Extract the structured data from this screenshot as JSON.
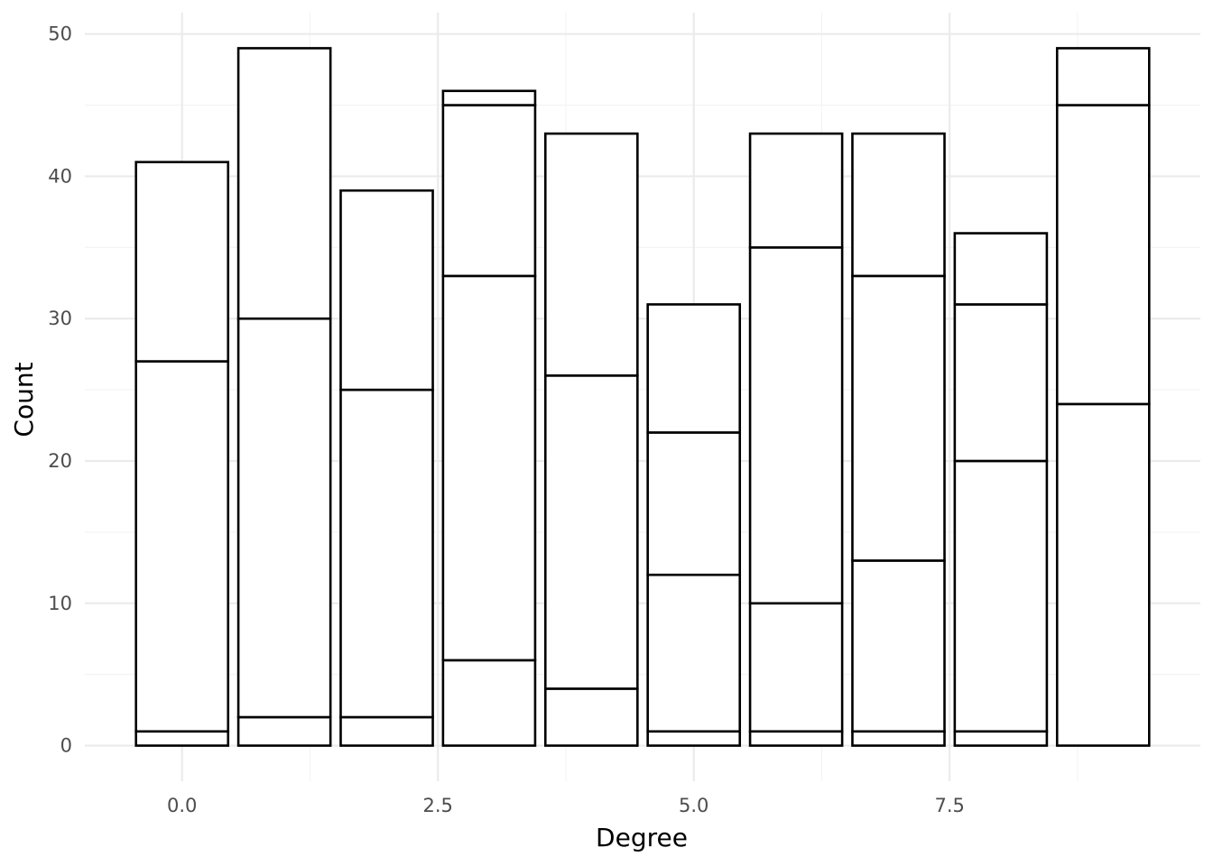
{
  "chart_data": {
    "type": "bar",
    "stacked": true,
    "title": "",
    "xlabel": "Degree",
    "ylabel": "Count",
    "x": [
      0,
      1,
      2,
      3,
      4,
      5,
      6,
      7,
      8,
      9
    ],
    "stack_boundaries": [
      [
        1,
        27,
        41
      ],
      [
        2,
        30,
        49
      ],
      [
        2,
        25,
        39
      ],
      [
        6,
        33,
        45,
        46
      ],
      [
        4,
        26,
        43
      ],
      [
        1,
        12,
        22,
        31
      ],
      [
        1,
        10,
        35,
        43
      ],
      [
        1,
        13,
        33,
        43
      ],
      [
        1,
        20,
        31,
        36
      ],
      [
        24,
        45,
        49
      ]
    ],
    "totals": [
      41,
      49,
      39,
      46,
      43,
      31,
      43,
      43,
      36,
      49
    ],
    "xlim": [
      -0.95,
      9.95
    ],
    "ylim": [
      -2.5,
      51.5
    ],
    "x_ticks": [
      0,
      2.5,
      5,
      7.5
    ],
    "x_tick_labels": [
      "0.0",
      "2.5",
      "5.0",
      "7.5"
    ],
    "y_ticks": [
      0,
      10,
      20,
      30,
      40,
      50
    ],
    "y_tick_labels": [
      "0",
      "10",
      "20",
      "30",
      "40",
      "50"
    ],
    "bar_width": 0.9,
    "grid": true,
    "legend": "none",
    "colors": {
      "bar_fill": "#ffffff",
      "bar_stroke": "#000000",
      "grid_major": "#ebebeb",
      "grid_minor": "#f3f3f3",
      "tick_text": "#4d4d4d"
    }
  }
}
